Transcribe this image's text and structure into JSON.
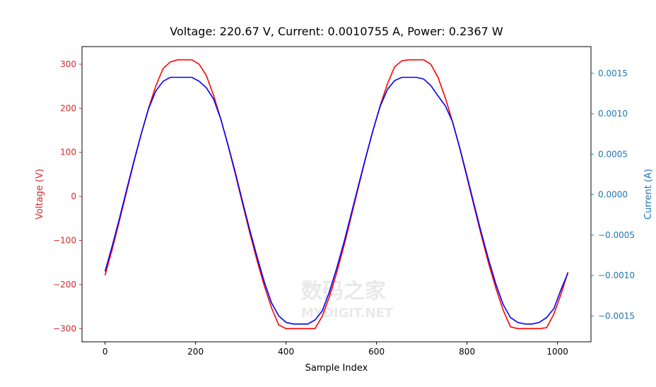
{
  "chart_data": {
    "type": "line",
    "title": "Voltage: 220.67 V, Current: 0.0010755 A, Power: 0.2367 W",
    "xlabel": "Sample Index",
    "ylabel": "Voltage (V)",
    "y2label": "Current (A)",
    "xlim": [
      -51,
      1074
    ],
    "ylim": [
      -330,
      340
    ],
    "y2lim": [
      -0.00182,
      0.00183
    ],
    "grid": false,
    "x_ticks": [
      0,
      200,
      400,
      600,
      800,
      1000
    ],
    "x_tick_labels": [
      "0",
      "200",
      "400",
      "600",
      "800",
      "1000"
    ],
    "y_ticks": [
      300,
      200,
      100,
      0,
      -100,
      -200,
      -300
    ],
    "y_tick_labels": [
      "300",
      "200",
      "100",
      "0",
      "−100",
      "−200",
      "−300"
    ],
    "y2_ticks": [
      0.0015,
      0.001,
      0.0005,
      0,
      -0.0005,
      -0.001,
      -0.0015
    ],
    "y2_tick_labels": [
      "0.0015",
      "0.0010",
      "0.0005",
      "0.0000",
      "−0.0005",
      "−0.0010",
      "−0.0015"
    ],
    "colors": {
      "voltage": "#ff0000",
      "current": "#0000ff",
      "left_axis": "#d62728",
      "right_axis": "#1f77b4"
    },
    "x": [
      0,
      16,
      32,
      48,
      64,
      80,
      96,
      112,
      128,
      144,
      160,
      176,
      192,
      208,
      224,
      240,
      256,
      272,
      288,
      304,
      320,
      336,
      352,
      368,
      384,
      400,
      416,
      432,
      448,
      464,
      480,
      496,
      512,
      528,
      544,
      560,
      576,
      592,
      608,
      624,
      640,
      656,
      672,
      688,
      704,
      720,
      736,
      752,
      768,
      784,
      800,
      816,
      832,
      848,
      864,
      880,
      896,
      912,
      928,
      944,
      960,
      976,
      992,
      1008,
      1023
    ],
    "series": [
      {
        "name": "Voltage (V)",
        "axis": "left",
        "values": [
          -179,
          -119,
          -54,
          13,
          79,
          142,
          200,
          250,
          290,
          305,
          310,
          310,
          310,
          300,
          274,
          229,
          175,
          115,
          50,
          -17,
          -83,
          -146,
          -203,
          -253,
          -292,
          -300,
          -300,
          -300,
          -300,
          -300,
          -272,
          -227,
          -173,
          -112,
          -46,
          21,
          87,
          149,
          206,
          255,
          294,
          308,
          310,
          310,
          310,
          300,
          270,
          224,
          169,
          109,
          43,
          -24,
          -90,
          -153,
          -209,
          -258,
          -296,
          -300,
          -300,
          -300,
          -300,
          -298,
          -267,
          -221,
          -172
        ]
      },
      {
        "name": "Current (A)",
        "axis": "right",
        "values": [
          -0.00095,
          -0.00063,
          -0.00029,
          7e-05,
          0.00042,
          0.00075,
          0.00106,
          0.00128,
          0.0014,
          0.00145,
          0.00145,
          0.00145,
          0.00145,
          0.0014,
          0.00132,
          0.00118,
          0.00093,
          0.00061,
          0.00027,
          -9e-05,
          -0.00044,
          -0.00077,
          -0.00108,
          -0.00134,
          -0.0015,
          -0.00158,
          -0.0016,
          -0.0016,
          -0.0016,
          -0.00155,
          -0.00144,
          -0.0012,
          -0.00091,
          -0.00059,
          -0.00024,
          0.00011,
          0.00046,
          0.00079,
          0.00109,
          0.0013,
          0.00141,
          0.00145,
          0.00145,
          0.00145,
          0.00143,
          0.00135,
          0.00122,
          0.0011,
          0.0009,
          0.00058,
          0.00023,
          -0.00013,
          -0.00048,
          -0.00081,
          -0.00111,
          -0.00136,
          -0.00152,
          -0.00158,
          -0.0016,
          -0.0016,
          -0.00158,
          -0.00152,
          -0.00141,
          -0.00117,
          -0.00097
        ]
      }
    ]
  },
  "watermark": {
    "text_cn": "数码之家",
    "text_en": "MYDIGIT.NET"
  }
}
